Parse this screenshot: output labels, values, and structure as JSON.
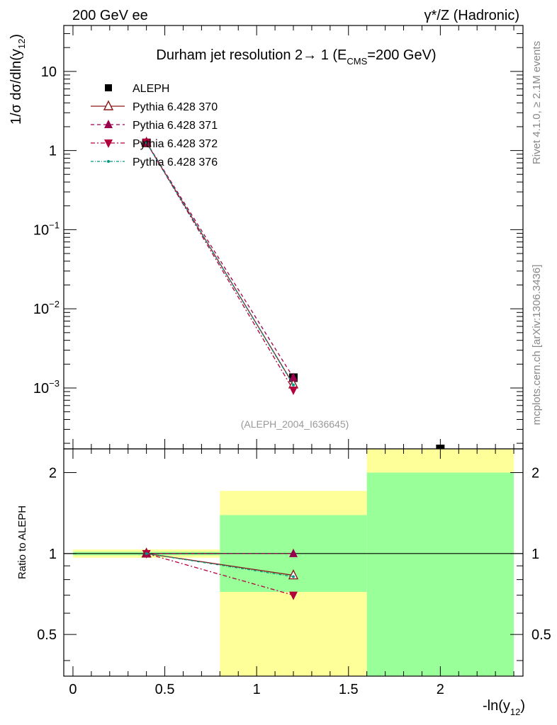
{
  "header": {
    "left_label": "200 GeV ee",
    "right_label": "γ*/Z (Hadronic)"
  },
  "side_labels": {
    "rivet": "Rivet 4.1.0, ≥ 2.1M events",
    "mcplots": "mcplots.cern.ch [arXiv:1306.3436]"
  },
  "colors": {
    "aleph": "#000000",
    "p370": "#8b1a1a",
    "p371": "#99004d",
    "p372": "#b3003c",
    "p376": "#009980",
    "band_inner": "#99ff99",
    "band_outer": "#ffff99"
  },
  "chart_data": [
    {
      "type": "line",
      "title": "Durham jet resolution 2→ 1 (E_CMS=200 GeV)",
      "title_parts": {
        "main": "Durham jet resolution 2→ 1 (E",
        "sub": "CMS",
        "tail": "=200 GeV)"
      },
      "analysis_id": "(ALEPH_2004_I636645)",
      "ylabel": "1/σ  dσ/dln(y12)",
      "ylabel_parts": {
        "main": "1/σ  dσ/dln(y",
        "sub": "12",
        "tail": ")"
      },
      "yscale": "log",
      "xlim": [
        -0.05,
        2.45
      ],
      "ylim": [
        0.00017,
        38
      ],
      "y_ticks": [
        {
          "value": 10,
          "label": "10"
        },
        {
          "value": 1,
          "label": "1"
        },
        {
          "value": 0.1,
          "label": "10",
          "exp": "−1"
        },
        {
          "value": 0.01,
          "label": "10",
          "exp": "−2"
        },
        {
          "value": 0.001,
          "label": "10",
          "exp": "−3"
        }
      ],
      "legend": "top-left",
      "series": [
        {
          "name": "ALEPH",
          "marker": "square",
          "x": [
            0.4,
            1.2,
            2.0
          ],
          "y": [
            1.25,
            0.00135,
            0.00017
          ]
        },
        {
          "name": "Pythia 6.428 370",
          "marker": "triangle-up-open",
          "line": "solid",
          "x": [
            0.4,
            1.2
          ],
          "y": [
            1.26,
            0.00111
          ]
        },
        {
          "name": "Pythia 6.428 371",
          "marker": "triangle-up",
          "line": "dashed",
          "x": [
            0.4,
            1.2
          ],
          "y": [
            1.27,
            0.00135
          ]
        },
        {
          "name": "Pythia 6.428 372",
          "marker": "triangle-down",
          "line": "dashdot",
          "x": [
            0.4,
            1.2
          ],
          "y": [
            1.27,
            0.00094
          ]
        },
        {
          "name": "Pythia 6.428 376",
          "marker": "dot",
          "line": "dashdot",
          "x": [
            0.4,
            1.2
          ],
          "y": [
            1.26,
            0.00109
          ]
        }
      ]
    },
    {
      "type": "line",
      "ylabel": "Ratio to ALEPH",
      "xlabel": "-ln(y12)",
      "xlabel_parts": {
        "main": "-ln(y",
        "sub": "12",
        "tail": ")"
      },
      "yscale": "log",
      "xlim": [
        -0.05,
        2.45
      ],
      "ylim": [
        0.35,
        2.45
      ],
      "x_ticks": [
        {
          "value": 0,
          "label": "0"
        },
        {
          "value": 0.5,
          "label": "0.5"
        },
        {
          "value": 1,
          "label": "1"
        },
        {
          "value": 1.5,
          "label": "1.5"
        },
        {
          "value": 2,
          "label": "2"
        }
      ],
      "y_ticks": [
        {
          "value": 0.5,
          "label": "0.5"
        },
        {
          "value": 1,
          "label": "1"
        },
        {
          "value": 2,
          "label": "2"
        }
      ],
      "reference_line": 1,
      "bands": [
        {
          "x0": 0.0,
          "x1": 0.8,
          "inner": [
            0.985,
            1.015
          ],
          "outer": [
            0.965,
            1.035
          ]
        },
        {
          "x0": 0.8,
          "x1": 1.6,
          "inner": [
            0.72,
            1.39
          ],
          "outer": [
            0.35,
            1.71
          ]
        },
        {
          "x0": 1.6,
          "x1": 2.4,
          "inner": [
            0.35,
            2.0
          ],
          "outer": [
            0.35,
            2.45
          ]
        }
      ],
      "series": [
        {
          "name": "Pythia 6.428 370",
          "marker": "triangle-up-open",
          "line": "solid",
          "x": [
            0.4,
            1.2
          ],
          "y": [
            1.0,
            0.83
          ]
        },
        {
          "name": "Pythia 6.428 371",
          "marker": "triangle-up",
          "line": "dashed",
          "x": [
            0.4,
            1.2
          ],
          "y": [
            1.0,
            1.0
          ]
        },
        {
          "name": "Pythia 6.428 372",
          "marker": "triangle-down",
          "line": "dashdot",
          "x": [
            0.4,
            1.2
          ],
          "y": [
            1.0,
            0.7
          ]
        },
        {
          "name": "Pythia 6.428 376",
          "marker": "dot",
          "line": "dashdot",
          "x": [
            0.4,
            1.2
          ],
          "y": [
            1.0,
            0.82
          ]
        }
      ]
    }
  ]
}
